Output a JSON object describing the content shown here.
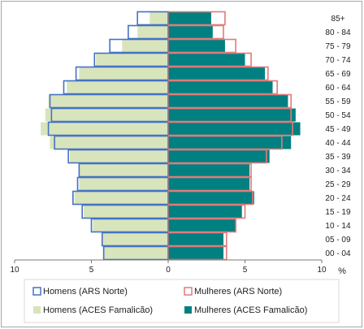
{
  "chart_data": {
    "type": "bar",
    "orientation": "horizontal-population-pyramid",
    "categories": [
      "00 - 04",
      "05 - 09",
      "10 - 14",
      "15 - 19",
      "20 - 24",
      "25 - 29",
      "30 - 34",
      "35 - 39",
      "40 - 44",
      "45 - 49",
      "50 - 54",
      "55 - 59",
      "60 - 64",
      "65 - 69",
      "70 - 74",
      "75 - 79",
      "80 - 84",
      "85+"
    ],
    "series": [
      {
        "name": "Homens (ARS Norte)",
        "side": "left",
        "style": "outline",
        "color": "#4472c4",
        "values": [
          4.2,
          4.3,
          5.0,
          5.6,
          6.2,
          5.9,
          5.8,
          6.5,
          7.4,
          7.8,
          7.6,
          7.7,
          6.8,
          6.0,
          4.8,
          3.8,
          2.6,
          2.0
        ]
      },
      {
        "name": "Mulheres (ARS Norte)",
        "side": "right",
        "style": "outline",
        "color": "#e07b7b",
        "values": [
          3.8,
          3.8,
          4.4,
          5.0,
          5.5,
          5.4,
          5.4,
          6.4,
          7.4,
          8.1,
          8.0,
          8.0,
          7.1,
          6.5,
          5.4,
          4.4,
          3.6,
          3.7
        ]
      },
      {
        "name": "Homens (ACES Famalicão)",
        "side": "left",
        "style": "fill",
        "color": "#d8e4bc",
        "values": [
          4.2,
          4.3,
          4.9,
          5.5,
          6.1,
          5.8,
          5.8,
          6.4,
          7.7,
          8.3,
          8.0,
          7.8,
          6.6,
          5.8,
          4.7,
          3.0,
          2.0,
          1.2
        ]
      },
      {
        "name": "Mulheres (ACES Famalicão)",
        "side": "right",
        "style": "fill",
        "color": "#008080",
        "values": [
          3.6,
          3.6,
          4.4,
          4.8,
          5.6,
          5.3,
          5.3,
          6.6,
          8.0,
          8.6,
          8.3,
          7.8,
          6.8,
          6.3,
          5.0,
          3.7,
          2.9,
          2.8
        ]
      }
    ],
    "xlim": [
      -10,
      10
    ],
    "xticks": [
      {
        "value": -10,
        "label": "10"
      },
      {
        "value": -5,
        "label": "5"
      },
      {
        "value": 0,
        "label": "0"
      },
      {
        "value": 5,
        "label": "5"
      },
      {
        "value": 10,
        "label": "10"
      }
    ],
    "xlabel": "%",
    "legend": "bottom",
    "grid": false
  }
}
